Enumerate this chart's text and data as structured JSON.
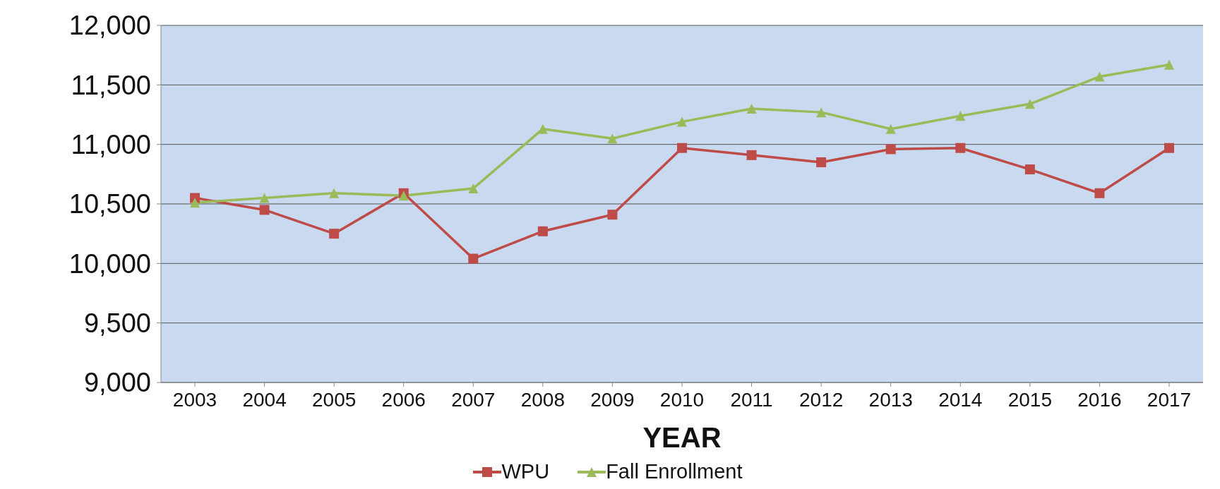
{
  "chart_data": {
    "type": "line",
    "xlabel": "YEAR",
    "categories": [
      "2003",
      "2004",
      "2005",
      "2006",
      "2007",
      "2008",
      "2009",
      "2010",
      "2011",
      "2012",
      "2013",
      "2014",
      "2015",
      "2016",
      "2017"
    ],
    "series": [
      {
        "name": "WPU",
        "color": "#be4b48",
        "marker": "square",
        "values": [
          10550,
          10450,
          10250,
          10590,
          10040,
          10270,
          10410,
          10970,
          10910,
          10850,
          10960,
          10970,
          10790,
          10590,
          10970
        ]
      },
      {
        "name": "Fall Enrollment",
        "color": "#9bbb59",
        "marker": "triangle",
        "values": [
          10510,
          10550,
          10590,
          10570,
          10630,
          11130,
          11050,
          11190,
          11300,
          11270,
          11130,
          11240,
          11340,
          11570,
          11670
        ]
      }
    ],
    "ylim": [
      9000,
      12000
    ],
    "yticks": [
      {
        "value": 9000,
        "label": "9,000"
      },
      {
        "value": 9500,
        "label": "9,500"
      },
      {
        "value": 10000,
        "label": "10,000"
      },
      {
        "value": 10500,
        "label": "10,500"
      },
      {
        "value": 11000,
        "label": "11,000"
      },
      {
        "value": 11500,
        "label": "11,500"
      },
      {
        "value": 12000,
        "label": "12,000"
      }
    ],
    "grid": "y",
    "legend": "bottom"
  }
}
